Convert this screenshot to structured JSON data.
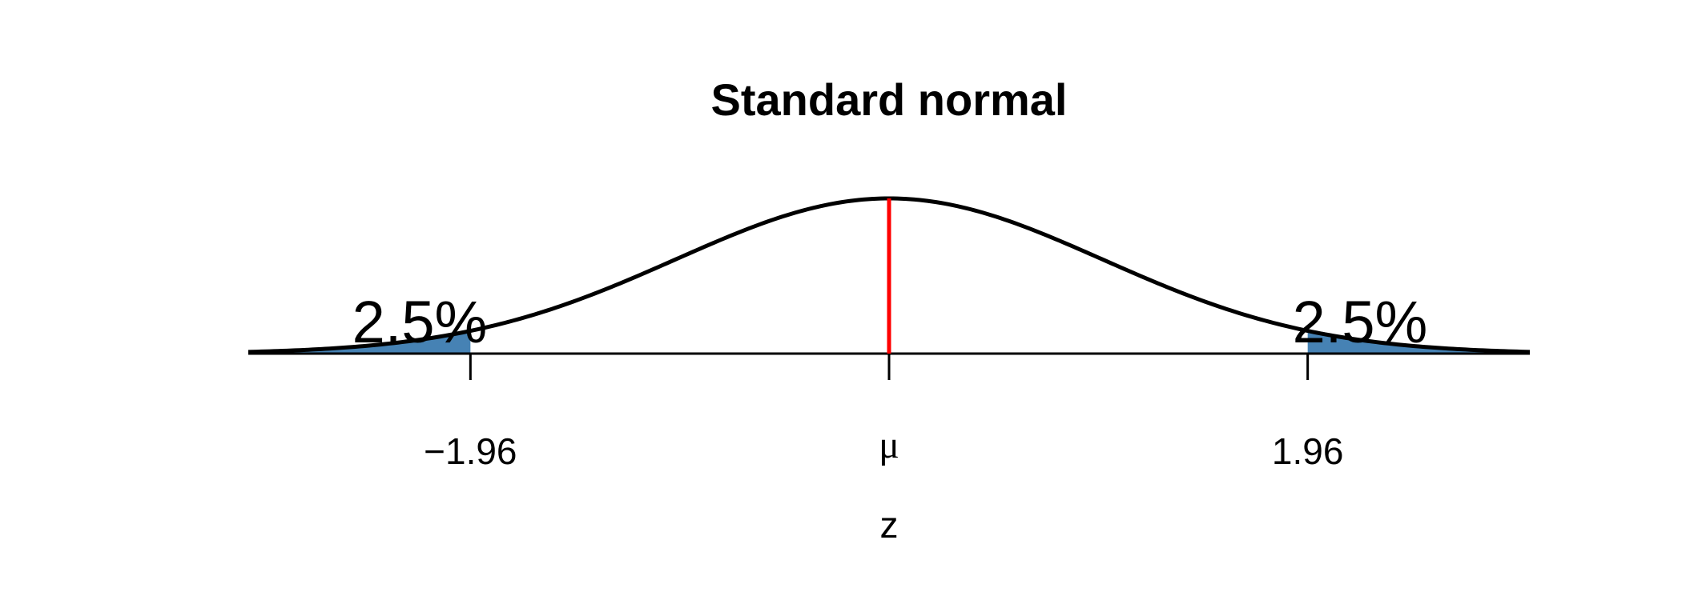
{
  "chart_data": {
    "type": "area",
    "title": "Standard normal",
    "xlabel": "z",
    "ylabel": "",
    "distribution": "standard normal density",
    "xlim": [
      -3.0,
      3.0
    ],
    "ylim": [
      0,
      0.4
    ],
    "mean": 0,
    "mean_line_color": "#ff0000",
    "curve_color": "#000000",
    "tail_fill_color": "#4682b4",
    "critical_values": [
      -1.96,
      1.96
    ],
    "ticks": [
      {
        "value": -1.96,
        "label": "−1.96"
      },
      {
        "value": 0,
        "label": "μ"
      },
      {
        "value": 1.96,
        "label": "1.96"
      }
    ],
    "tails": [
      {
        "from": -3.0,
        "to": -1.96,
        "label": "2.5%"
      },
      {
        "from": 1.96,
        "to": 3.0,
        "label": "2.5%"
      }
    ],
    "grid": false,
    "legend": "none"
  }
}
